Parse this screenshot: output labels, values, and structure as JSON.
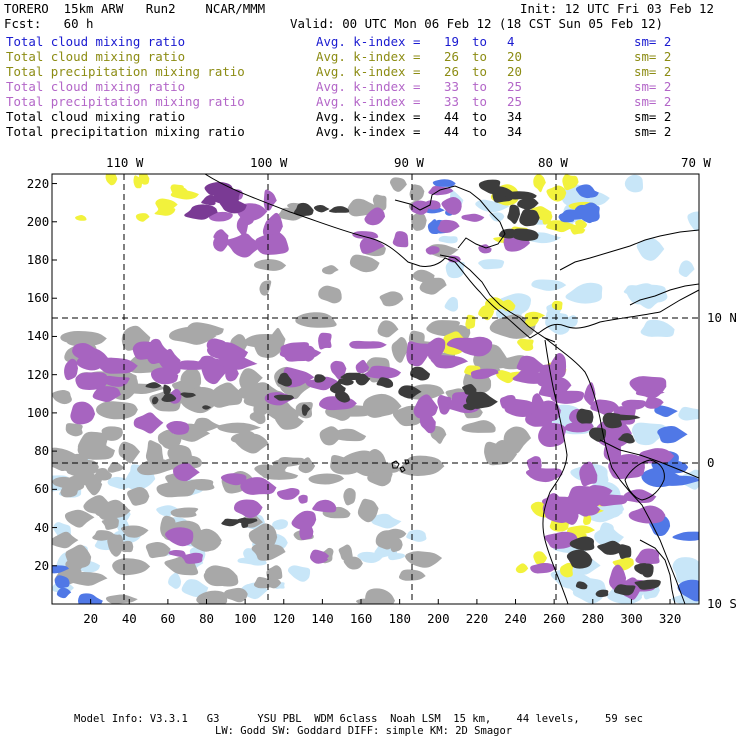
{
  "header": {
    "model_title": "TORERO  15km ARW   Run2    NCAR/MMM",
    "init": "Init: 12 UTC Fri 03 Feb 12",
    "fcst": "Fcst:   60 h",
    "valid": "Valid: 00 UTC Mon 06 Feb 12 (18 CST Sun 05 Feb 12)"
  },
  "legend": [
    {
      "field": "Total cloud mixing ratio",
      "index": "Avg. k-index = ",
      "hi": "19",
      "to": "to",
      "lo": "4",
      "sm": "sm= 2",
      "color": "#1a1ad0"
    },
    {
      "field": "Total cloud mixing ratio",
      "index": "Avg. k-index = ",
      "hi": "26",
      "to": "to",
      "lo": "20",
      "sm": "sm= 2",
      "color": "#8c8c14"
    },
    {
      "field": "Total precipitation mixing ratio",
      "index": "Avg. k-index = ",
      "hi": "26",
      "to": "to",
      "lo": "20",
      "sm": "sm= 2",
      "color": "#8c8c14"
    },
    {
      "field": "Total cloud mixing ratio",
      "index": "Avg. k-index = ",
      "hi": "33",
      "to": "to",
      "lo": "25",
      "sm": "sm= 2",
      "color": "#b366c8"
    },
    {
      "field": "Total precipitation mixing ratio",
      "index": "Avg. k-index = ",
      "hi": "33",
      "to": "to",
      "lo": "25",
      "sm": "sm= 2",
      "color": "#b366c8"
    },
    {
      "field": "Total cloud mixing ratio",
      "index": "Avg. k-index = ",
      "hi": "44",
      "to": "to",
      "lo": "34",
      "sm": "sm= 2",
      "color": "#000000"
    },
    {
      "field": "Total precipitation mixing ratio",
      "index": "Avg. k-index = ",
      "hi": "44",
      "to": "to",
      "lo": "34",
      "sm": "sm= 2",
      "color": "#000000"
    }
  ],
  "axes": {
    "x_ticks": [
      "20",
      "40",
      "60",
      "80",
      "100",
      "120",
      "140",
      "160",
      "180",
      "200",
      "220",
      "240",
      "260",
      "280",
      "300",
      "320"
    ],
    "y_ticks": [
      "220",
      "200",
      "180",
      "160",
      "140",
      "120",
      "100",
      "80",
      "60",
      "40",
      "20"
    ],
    "lon_labels": [
      "110 W",
      "100 W",
      "90 W",
      "80 W",
      "70 W"
    ],
    "lat_labels": [
      "10 N",
      "0",
      "10 S"
    ]
  },
  "footer": {
    "line1": "Model Info: V3.3.1   G3      YSU PBL  WDM 6class  Noah LSM  15 km,    44 levels,    59 sec",
    "line2": "LW: Godd SW: Goddard DIFF: simple KM: 2D Smagor"
  },
  "colors": {
    "gray": "#a8a8a8",
    "dark": "#3c3c3c",
    "purple": "#a764c0",
    "darkpurple": "#7a3a94",
    "yellow": "#f2f23c",
    "lightblue": "#c8e6f8",
    "blue": "#5078e6",
    "darkblue": "#1e32c8"
  }
}
